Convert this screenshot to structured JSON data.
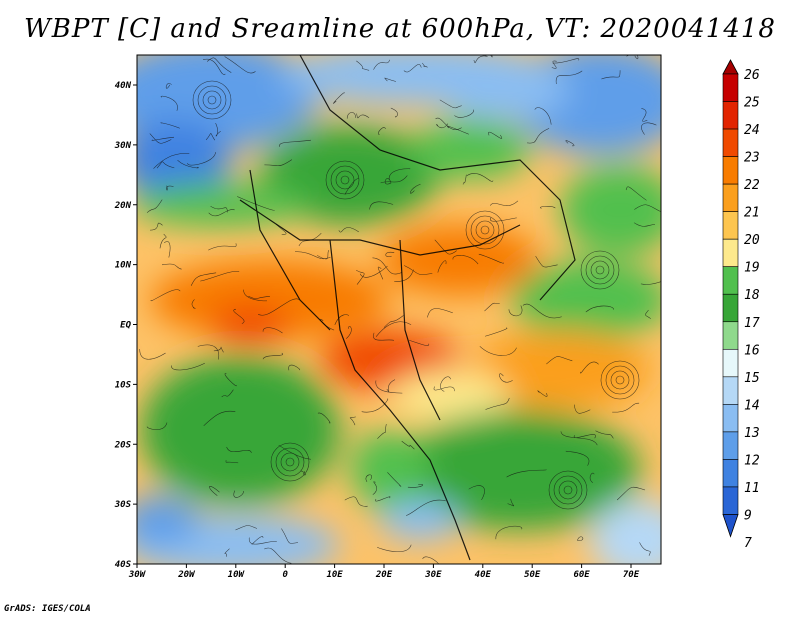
{
  "title": "WBPT [C] and Sreamline at 600hPa, VT: 2020041418",
  "credit": "GrADS: IGES/COLA",
  "map": {
    "lat_ticks": [
      "40N",
      "30N",
      "20N",
      "10N",
      "EQ",
      "10S",
      "20S",
      "30S",
      "40S"
    ],
    "lon_ticks": [
      "30W",
      "20W",
      "10W",
      "0",
      "10E",
      "20E",
      "30E",
      "40E",
      "50E",
      "60E",
      "70E"
    ]
  },
  "colorbar": {
    "labels": [
      "26",
      "25",
      "24",
      "23",
      "22",
      "21",
      "20",
      "19",
      "18",
      "17",
      "16",
      "15",
      "14",
      "13",
      "12",
      "11",
      "9",
      "7"
    ],
    "colors": [
      "#a50000",
      "#c60000",
      "#e22400",
      "#f04a00",
      "#f87c00",
      "#fb9f1d",
      "#fdc54f",
      "#fde98c",
      "#51c04e",
      "#37a637",
      "#8fd98c",
      "#e7f8fb",
      "#b5d8f6",
      "#8abdf2",
      "#5e9ee9",
      "#3f82e1",
      "#2a66d6",
      "#1e53cc"
    ]
  }
}
